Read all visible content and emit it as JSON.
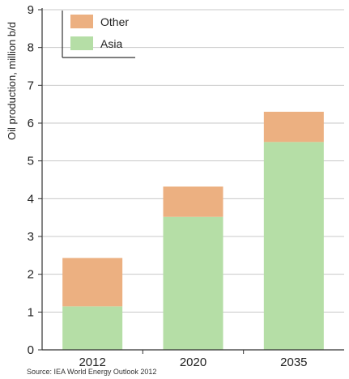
{
  "chart_data": {
    "type": "bar",
    "stacked": true,
    "categories": [
      "2012",
      "2020",
      "2035"
    ],
    "series": [
      {
        "name": "Asia",
        "values": [
          1.15,
          3.52,
          5.5
        ],
        "color": "#b5dea6"
      },
      {
        "name": "Other",
        "values": [
          1.28,
          0.8,
          0.8
        ],
        "color": "#ecb081"
      }
    ],
    "ylabel": "Oil production, million b/d",
    "xlabel": "",
    "ylim": [
      0,
      9
    ],
    "yticks": [
      "0",
      "1",
      "2",
      "3",
      "4",
      "5",
      "6",
      "7",
      "8",
      "9"
    ],
    "grid": "horizontal",
    "legend_position": "top-left",
    "legend_order": [
      "Other",
      "Asia"
    ],
    "source": "Source: IEA World Energy Outlook 2012"
  }
}
